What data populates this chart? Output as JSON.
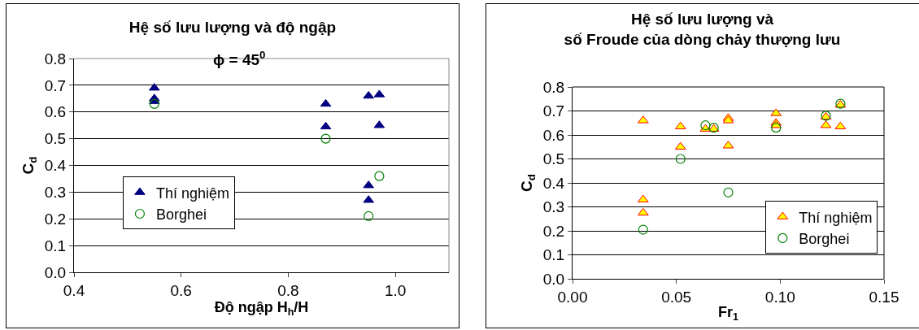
{
  "chart_data": [
    {
      "type": "scatter",
      "title": "Hệ số lưu lượng và độ ngập",
      "annotations": [
        "ϕ = 45$^{0}$"
      ],
      "xlabel": "Độ ngập H$_{h}$/H",
      "ylabel": "C$_{d}$",
      "xlim": [
        0.4,
        1.1
      ],
      "xticks": [
        {
          "value": 0.4,
          "label": "0.4"
        },
        {
          "value": 0.6,
          "label": "0.6"
        },
        {
          "value": 0.8,
          "label": "0.8"
        },
        {
          "value": 1.0,
          "label": "1.0"
        }
      ],
      "ylim": [
        0,
        0.8
      ],
      "yticks": [
        {
          "value": 0,
          "label": "0.0"
        },
        0.1,
        0.2,
        0.3,
        0.4,
        0.5,
        0.6,
        0.7,
        0.8
      ],
      "grid": "y",
      "legend": "bottom left",
      "series": [
        {
          "name": "Thí nghiệm",
          "color": "#000080",
          "marker": "triangle",
          "x": [
            0.55,
            0.55,
            0.55,
            0.87,
            0.87,
            0.95,
            0.95,
            0.95,
            0.97,
            0.97
          ],
          "values": [
            0.69,
            0.65,
            0.64,
            0.63,
            0.545,
            0.66,
            0.325,
            0.27,
            0.665,
            0.55
          ]
        },
        {
          "name": "Borghei",
          "color": "#008000",
          "marker": "circle",
          "x": [
            0.55,
            0.87,
            0.95,
            0.97
          ],
          "values": [
            0.63,
            0.5,
            0.21,
            0.36
          ]
        }
      ]
    },
    {
      "type": "scatter",
      "title": "Hệ số lưu lượng và\nsố Froude của dòng chảy thượng lưu",
      "xlabel": "Fr$_{1}$",
      "ylabel": "C$_{d}$",
      "xlim": [
        0,
        0.15
      ],
      "xticks": [
        {
          "value": 0,
          "label": "0.00"
        },
        0.05,
        {
          "value": 0.1,
          "label": "0.10"
        },
        0.15
      ],
      "ylim": [
        0,
        0.8
      ],
      "yticks": [
        {
          "value": 0,
          "label": "0.0"
        },
        0.1,
        0.2,
        0.3,
        0.4,
        0.5,
        0.6,
        0.7,
        0.8
      ],
      "grid": "y",
      "legend": "bottom right",
      "series": [
        {
          "name": "Thí nghiệm",
          "color": "#ffff00",
          "marker": "triangle",
          "x": [
            0.034,
            0.034,
            0.034,
            0.052,
            0.052,
            0.064,
            0.068,
            0.075,
            0.075,
            0.075,
            0.098,
            0.098,
            0.098,
            0.122,
            0.122,
            0.129,
            0.129
          ],
          "values": [
            0.66,
            0.33,
            0.275,
            0.635,
            0.55,
            0.625,
            0.625,
            0.67,
            0.66,
            0.555,
            0.69,
            0.65,
            0.64,
            0.675,
            0.64,
            0.725,
            0.635
          ]
        },
        {
          "name": "Borghei",
          "color": "#008000",
          "marker": "circle",
          "x": [
            0.034,
            0.052,
            0.064,
            0.068,
            0.075,
            0.098,
            0.122,
            0.129
          ],
          "values": [
            0.205,
            0.5,
            0.64,
            0.63,
            0.36,
            0.63,
            0.68,
            0.73
          ]
        }
      ]
    }
  ]
}
